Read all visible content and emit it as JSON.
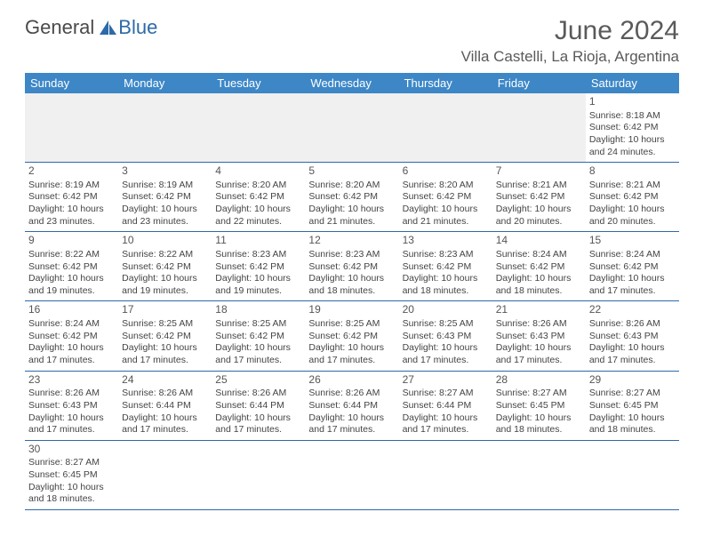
{
  "logo": {
    "text_a": "General",
    "text_b": "Blue"
  },
  "title": "June 2024",
  "location": "Villa Castelli, La Rioja, Argentina",
  "colors": {
    "header_bg": "#3d87c7",
    "border": "#2d6aa8",
    "text": "#444444",
    "title_text": "#5a5a5a"
  },
  "day_headers": [
    "Sunday",
    "Monday",
    "Tuesday",
    "Wednesday",
    "Thursday",
    "Friday",
    "Saturday"
  ],
  "weeks": [
    [
      null,
      null,
      null,
      null,
      null,
      null,
      {
        "day": "1",
        "sunrise": "Sunrise: 8:18 AM",
        "sunset": "Sunset: 6:42 PM",
        "daylight": "Daylight: 10 hours and 24 minutes."
      }
    ],
    [
      {
        "day": "2",
        "sunrise": "Sunrise: 8:19 AM",
        "sunset": "Sunset: 6:42 PM",
        "daylight": "Daylight: 10 hours and 23 minutes."
      },
      {
        "day": "3",
        "sunrise": "Sunrise: 8:19 AM",
        "sunset": "Sunset: 6:42 PM",
        "daylight": "Daylight: 10 hours and 23 minutes."
      },
      {
        "day": "4",
        "sunrise": "Sunrise: 8:20 AM",
        "sunset": "Sunset: 6:42 PM",
        "daylight": "Daylight: 10 hours and 22 minutes."
      },
      {
        "day": "5",
        "sunrise": "Sunrise: 8:20 AM",
        "sunset": "Sunset: 6:42 PM",
        "daylight": "Daylight: 10 hours and 21 minutes."
      },
      {
        "day": "6",
        "sunrise": "Sunrise: 8:20 AM",
        "sunset": "Sunset: 6:42 PM",
        "daylight": "Daylight: 10 hours and 21 minutes."
      },
      {
        "day": "7",
        "sunrise": "Sunrise: 8:21 AM",
        "sunset": "Sunset: 6:42 PM",
        "daylight": "Daylight: 10 hours and 20 minutes."
      },
      {
        "day": "8",
        "sunrise": "Sunrise: 8:21 AM",
        "sunset": "Sunset: 6:42 PM",
        "daylight": "Daylight: 10 hours and 20 minutes."
      }
    ],
    [
      {
        "day": "9",
        "sunrise": "Sunrise: 8:22 AM",
        "sunset": "Sunset: 6:42 PM",
        "daylight": "Daylight: 10 hours and 19 minutes."
      },
      {
        "day": "10",
        "sunrise": "Sunrise: 8:22 AM",
        "sunset": "Sunset: 6:42 PM",
        "daylight": "Daylight: 10 hours and 19 minutes."
      },
      {
        "day": "11",
        "sunrise": "Sunrise: 8:23 AM",
        "sunset": "Sunset: 6:42 PM",
        "daylight": "Daylight: 10 hours and 19 minutes."
      },
      {
        "day": "12",
        "sunrise": "Sunrise: 8:23 AM",
        "sunset": "Sunset: 6:42 PM",
        "daylight": "Daylight: 10 hours and 18 minutes."
      },
      {
        "day": "13",
        "sunrise": "Sunrise: 8:23 AM",
        "sunset": "Sunset: 6:42 PM",
        "daylight": "Daylight: 10 hours and 18 minutes."
      },
      {
        "day": "14",
        "sunrise": "Sunrise: 8:24 AM",
        "sunset": "Sunset: 6:42 PM",
        "daylight": "Daylight: 10 hours and 18 minutes."
      },
      {
        "day": "15",
        "sunrise": "Sunrise: 8:24 AM",
        "sunset": "Sunset: 6:42 PM",
        "daylight": "Daylight: 10 hours and 17 minutes."
      }
    ],
    [
      {
        "day": "16",
        "sunrise": "Sunrise: 8:24 AM",
        "sunset": "Sunset: 6:42 PM",
        "daylight": "Daylight: 10 hours and 17 minutes."
      },
      {
        "day": "17",
        "sunrise": "Sunrise: 8:25 AM",
        "sunset": "Sunset: 6:42 PM",
        "daylight": "Daylight: 10 hours and 17 minutes."
      },
      {
        "day": "18",
        "sunrise": "Sunrise: 8:25 AM",
        "sunset": "Sunset: 6:42 PM",
        "daylight": "Daylight: 10 hours and 17 minutes."
      },
      {
        "day": "19",
        "sunrise": "Sunrise: 8:25 AM",
        "sunset": "Sunset: 6:42 PM",
        "daylight": "Daylight: 10 hours and 17 minutes."
      },
      {
        "day": "20",
        "sunrise": "Sunrise: 8:25 AM",
        "sunset": "Sunset: 6:43 PM",
        "daylight": "Daylight: 10 hours and 17 minutes."
      },
      {
        "day": "21",
        "sunrise": "Sunrise: 8:26 AM",
        "sunset": "Sunset: 6:43 PM",
        "daylight": "Daylight: 10 hours and 17 minutes."
      },
      {
        "day": "22",
        "sunrise": "Sunrise: 8:26 AM",
        "sunset": "Sunset: 6:43 PM",
        "daylight": "Daylight: 10 hours and 17 minutes."
      }
    ],
    [
      {
        "day": "23",
        "sunrise": "Sunrise: 8:26 AM",
        "sunset": "Sunset: 6:43 PM",
        "daylight": "Daylight: 10 hours and 17 minutes."
      },
      {
        "day": "24",
        "sunrise": "Sunrise: 8:26 AM",
        "sunset": "Sunset: 6:44 PM",
        "daylight": "Daylight: 10 hours and 17 minutes."
      },
      {
        "day": "25",
        "sunrise": "Sunrise: 8:26 AM",
        "sunset": "Sunset: 6:44 PM",
        "daylight": "Daylight: 10 hours and 17 minutes."
      },
      {
        "day": "26",
        "sunrise": "Sunrise: 8:26 AM",
        "sunset": "Sunset: 6:44 PM",
        "daylight": "Daylight: 10 hours and 17 minutes."
      },
      {
        "day": "27",
        "sunrise": "Sunrise: 8:27 AM",
        "sunset": "Sunset: 6:44 PM",
        "daylight": "Daylight: 10 hours and 17 minutes."
      },
      {
        "day": "28",
        "sunrise": "Sunrise: 8:27 AM",
        "sunset": "Sunset: 6:45 PM",
        "daylight": "Daylight: 10 hours and 18 minutes."
      },
      {
        "day": "29",
        "sunrise": "Sunrise: 8:27 AM",
        "sunset": "Sunset: 6:45 PM",
        "daylight": "Daylight: 10 hours and 18 minutes."
      }
    ],
    [
      {
        "day": "30",
        "sunrise": "Sunrise: 8:27 AM",
        "sunset": "Sunset: 6:45 PM",
        "daylight": "Daylight: 10 hours and 18 minutes."
      },
      null,
      null,
      null,
      null,
      null,
      null
    ]
  ]
}
